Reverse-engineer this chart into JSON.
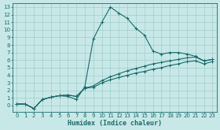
{
  "xlabel": "Humidex (Indice chaleur)",
  "bg_color": "#c8e8e8",
  "grid_color": "#a0cccc",
  "line_color": "#1a6b6b",
  "xlim": [
    -0.5,
    23.5
  ],
  "ylim": [
    -0.8,
    13.5
  ],
  "xticks": [
    0,
    1,
    2,
    3,
    4,
    5,
    6,
    7,
    8,
    9,
    10,
    11,
    12,
    13,
    14,
    15,
    16,
    17,
    18,
    19,
    20,
    21,
    22,
    23
  ],
  "yticks": [
    0,
    1,
    2,
    3,
    4,
    5,
    6,
    7,
    8,
    9,
    10,
    11,
    12,
    13
  ],
  "line1_x": [
    0,
    1,
    2,
    3,
    4,
    5,
    6,
    7,
    8,
    9,
    10,
    11,
    12,
    13,
    14,
    15,
    16,
    17,
    18,
    19,
    20,
    21,
    22,
    23
  ],
  "line1_y": [
    0.2,
    0.2,
    -0.4,
    0.8,
    1.1,
    1.3,
    1.2,
    0.8,
    2.5,
    8.8,
    11.0,
    13.0,
    12.2,
    11.5,
    10.2,
    9.3,
    7.2,
    6.8,
    7.0,
    7.0,
    6.8,
    6.5,
    5.9,
    6.1
  ],
  "line2_x": [
    0,
    1,
    2,
    3,
    4,
    5,
    6,
    7,
    8,
    9,
    10,
    11,
    12,
    13,
    14,
    15,
    16,
    17,
    18,
    19,
    20,
    21,
    22,
    23
  ],
  "line2_y": [
    0.2,
    0.2,
    -0.4,
    0.8,
    1.1,
    1.3,
    1.4,
    1.2,
    2.3,
    2.6,
    3.3,
    3.8,
    4.2,
    4.6,
    4.9,
    5.2,
    5.5,
    5.7,
    5.9,
    6.1,
    6.3,
    6.4,
    5.9,
    6.1
  ],
  "line3_x": [
    0,
    1,
    2,
    3,
    4,
    5,
    6,
    7,
    8,
    9,
    10,
    11,
    12,
    13,
    14,
    15,
    16,
    17,
    18,
    19,
    20,
    21,
    22,
    23
  ],
  "line3_y": [
    0.2,
    0.2,
    -0.4,
    0.8,
    1.1,
    1.3,
    1.4,
    1.2,
    2.3,
    2.4,
    3.0,
    3.4,
    3.7,
    4.0,
    4.3,
    4.5,
    4.8,
    5.0,
    5.3,
    5.5,
    5.8,
    5.9,
    5.5,
    5.8
  ],
  "xlabel_fontsize": 6.0,
  "tick_fontsize": 5.0
}
